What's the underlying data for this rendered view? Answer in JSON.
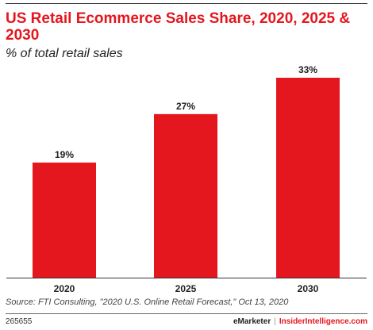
{
  "header": {
    "title": "US Retail Ecommerce Sales Share, 2020, 2025 & 2030",
    "subtitle": "% of total retail sales"
  },
  "colors": {
    "bar": "#e4161e",
    "title": "#e4161e",
    "axis": "#333333"
  },
  "chart_data": {
    "type": "bar",
    "categories": [
      "2020",
      "2025",
      "2030"
    ],
    "values": [
      19,
      27,
      33
    ],
    "value_labels": [
      "19%",
      "27%",
      "33%"
    ],
    "title": "US Retail Ecommerce Sales Share, 2020, 2025 & 2030",
    "subtitle": "% of total retail sales",
    "xlabel": "",
    "ylabel": "",
    "ylim": [
      0,
      33
    ],
    "grid": false,
    "legend": "none"
  },
  "footer": {
    "source": "Source: FTI Consulting, \"2020 U.S. Online Retail Forecast,\" Oct 13, 2020",
    "chart_id": "265655",
    "brand_emarketer": "eMarketer",
    "brand_separator": "|",
    "brand_insider": "InsiderIntelligence.com"
  }
}
